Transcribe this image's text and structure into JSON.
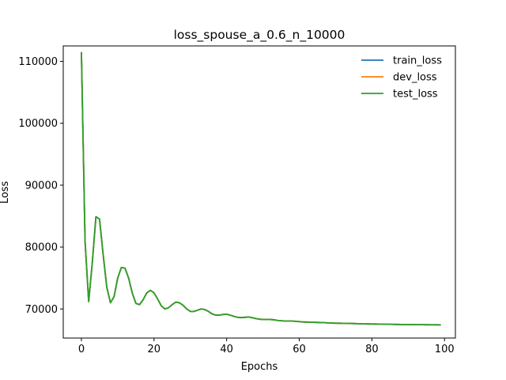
{
  "chart_data": {
    "type": "line",
    "title": "loss_spouse_a_0.6_n_10000",
    "xlabel": "Epochs",
    "ylabel": "Loss",
    "xlim": [
      -5,
      103
    ],
    "ylim": [
      65300,
      112500
    ],
    "xticks": [
      0,
      20,
      40,
      60,
      80,
      100
    ],
    "yticks": [
      70000,
      80000,
      90000,
      100000,
      110000
    ],
    "xtick_labels": [
      "0",
      "20",
      "40",
      "60",
      "80",
      "100"
    ],
    "ytick_labels": [
      "70000",
      "80000",
      "90000",
      "100000",
      "110000"
    ],
    "grid": false,
    "legend": "top-right",
    "x": [
      0,
      1,
      2,
      3,
      4,
      5,
      6,
      7,
      8,
      9,
      10,
      11,
      12,
      13,
      14,
      15,
      16,
      17,
      18,
      19,
      20,
      21,
      22,
      23,
      24,
      25,
      26,
      27,
      28,
      29,
      30,
      31,
      32,
      33,
      34,
      35,
      36,
      37,
      38,
      39,
      40,
      41,
      42,
      43,
      44,
      45,
      46,
      47,
      48,
      49,
      50,
      51,
      52,
      53,
      54,
      55,
      56,
      57,
      58,
      59,
      60,
      61,
      62,
      63,
      64,
      65,
      66,
      67,
      68,
      69,
      70,
      71,
      72,
      73,
      74,
      75,
      76,
      77,
      78,
      79,
      80,
      81,
      82,
      83,
      84,
      85,
      86,
      87,
      88,
      89,
      90,
      91,
      92,
      93,
      94,
      95,
      96,
      97,
      98,
      99
    ],
    "series": [
      {
        "name": "train_loss",
        "color": "#1f77b4",
        "values": [
          111500,
          81000,
          71200,
          77500,
          84900,
          84500,
          78700,
          73500,
          71000,
          72000,
          75000,
          76700,
          76600,
          75000,
          72600,
          70900,
          70700,
          71500,
          72600,
          73000,
          72600,
          71600,
          70500,
          70000,
          70200,
          70700,
          71100,
          71000,
          70600,
          70000,
          69600,
          69600,
          69800,
          70000,
          69900,
          69600,
          69200,
          69000,
          69000,
          69100,
          69150,
          69000,
          68800,
          68650,
          68600,
          68650,
          68700,
          68600,
          68450,
          68350,
          68300,
          68300,
          68300,
          68250,
          68150,
          68100,
          68050,
          68050,
          68050,
          68000,
          67950,
          67900,
          67880,
          67860,
          67840,
          67820,
          67800,
          67780,
          67750,
          67720,
          67700,
          67690,
          67680,
          67670,
          67660,
          67640,
          67620,
          67600,
          67590,
          67580,
          67570,
          67560,
          67550,
          67540,
          67530,
          67520,
          67510,
          67500,
          67490,
          67480,
          67475,
          67470,
          67465,
          67460,
          67455,
          67450,
          67445,
          67440,
          67435,
          67430
        ]
      },
      {
        "name": "dev_loss",
        "color": "#ff7f0e",
        "values": [
          111500,
          81000,
          71200,
          77500,
          84900,
          84500,
          78700,
          73500,
          71000,
          72000,
          75000,
          76700,
          76600,
          75000,
          72600,
          70900,
          70700,
          71500,
          72600,
          73000,
          72600,
          71600,
          70500,
          70000,
          70200,
          70700,
          71100,
          71000,
          70600,
          70000,
          69600,
          69600,
          69800,
          70000,
          69900,
          69600,
          69200,
          69000,
          69000,
          69100,
          69150,
          69000,
          68800,
          68650,
          68600,
          68650,
          68700,
          68600,
          68450,
          68350,
          68300,
          68300,
          68300,
          68250,
          68150,
          68100,
          68050,
          68050,
          68050,
          68000,
          67950,
          67900,
          67880,
          67860,
          67840,
          67820,
          67800,
          67780,
          67750,
          67720,
          67700,
          67690,
          67680,
          67670,
          67660,
          67640,
          67620,
          67600,
          67590,
          67580,
          67570,
          67560,
          67550,
          67540,
          67530,
          67520,
          67510,
          67500,
          67490,
          67480,
          67475,
          67470,
          67465,
          67460,
          67455,
          67450,
          67445,
          67440,
          67435,
          67430
        ]
      },
      {
        "name": "test_loss",
        "color": "#2ca02c",
        "values": [
          111500,
          81000,
          71200,
          77500,
          84900,
          84500,
          78700,
          73500,
          71000,
          72000,
          75000,
          76700,
          76600,
          75000,
          72600,
          70900,
          70700,
          71500,
          72600,
          73000,
          72600,
          71600,
          70500,
          70000,
          70200,
          70700,
          71100,
          71000,
          70600,
          70000,
          69600,
          69600,
          69800,
          70000,
          69900,
          69600,
          69200,
          69000,
          69000,
          69100,
          69150,
          69000,
          68800,
          68650,
          68600,
          68650,
          68700,
          68600,
          68450,
          68350,
          68300,
          68300,
          68300,
          68250,
          68150,
          68100,
          68050,
          68050,
          68050,
          68000,
          67950,
          67900,
          67880,
          67860,
          67840,
          67820,
          67800,
          67780,
          67750,
          67720,
          67700,
          67690,
          67680,
          67670,
          67660,
          67640,
          67620,
          67600,
          67590,
          67580,
          67570,
          67560,
          67550,
          67540,
          67530,
          67520,
          67510,
          67500,
          67490,
          67480,
          67475,
          67470,
          67465,
          67460,
          67455,
          67450,
          67445,
          67440,
          67435,
          67430
        ]
      }
    ]
  }
}
